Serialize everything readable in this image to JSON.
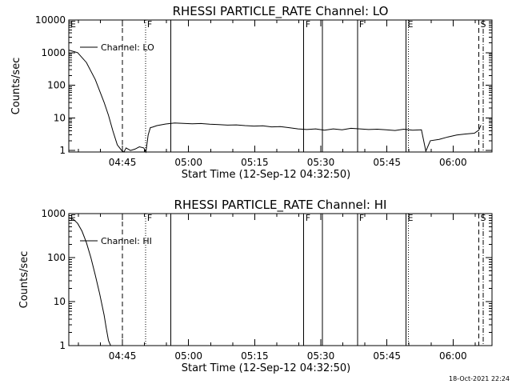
{
  "footer": {
    "timestamp": "18-Oct-2021 22:24"
  },
  "chart_data": [
    {
      "type": "line",
      "title": "RHESSI PARTICLE_RATE Channel: LO",
      "xlabel": "Start Time (12-Sep-12 04:32:50)",
      "ylabel": "Counts/sec",
      "yscale": "log",
      "xlim_minutes": [
        0,
        96
      ],
      "ylim": [
        0.9,
        10000
      ],
      "x_ticks_minutes": [
        12.17,
        27.17,
        42.17,
        57.17,
        72.17,
        87.17
      ],
      "x_tick_labels": [
        "04:45",
        "05:00",
        "05:15",
        "05:30",
        "05:45",
        "06:00"
      ],
      "y_ticks": [
        1,
        10,
        100,
        1000,
        10000
      ],
      "y_tick_labels": [
        "1",
        "10",
        "100",
        "1000",
        "10000"
      ],
      "legend": {
        "label": "Channel: LO",
        "placement": "top-left"
      },
      "series": [
        {
          "name": "Channel: LO",
          "x_minutes": [
            0,
            2,
            4,
            6,
            8,
            9,
            10,
            11,
            12,
            12.5,
            13,
            14,
            15,
            16,
            17,
            17.5,
            18,
            18.5,
            19,
            20,
            22,
            24,
            26,
            28,
            30,
            32,
            34,
            36,
            38,
            40,
            42,
            44,
            46,
            48,
            50,
            52,
            54,
            56,
            58,
            60,
            62,
            64,
            66,
            68,
            70,
            72,
            74,
            76,
            78,
            80,
            81,
            82,
            84,
            86,
            88,
            90,
            92,
            93,
            93.5
          ],
          "y": [
            1200,
            1000,
            500,
            150,
            30,
            12,
            4,
            1.5,
            1,
            0.9,
            1.2,
            1,
            1.1,
            1.3,
            1.2,
            0.9,
            3,
            5,
            5.2,
            5.8,
            6.5,
            7,
            6.8,
            6.6,
            6.7,
            6.4,
            6.2,
            6.0,
            6.1,
            5.8,
            5.6,
            5.7,
            5.3,
            5.4,
            5.0,
            4.6,
            4.4,
            4.6,
            4.2,
            4.6,
            4.3,
            4.8,
            4.6,
            4.4,
            4.5,
            4.3,
            4.1,
            4.5,
            4.2,
            4.3,
            0.95,
            2,
            2.2,
            2.6,
            3.0,
            3.2,
            3.4,
            4.2,
            6
          ]
        }
      ],
      "vlines": [
        {
          "x_minutes": 12.17,
          "style": "dashed",
          "flag": ""
        },
        {
          "x_minutes": 17.4,
          "style": "dotted",
          "flag": "F"
        },
        {
          "x_minutes": 23.1,
          "style": "solid",
          "flag": ""
        },
        {
          "x_minutes": 53.3,
          "style": "solid",
          "flag": "F"
        },
        {
          "x_minutes": 57.5,
          "style": "solid",
          "flag": ""
        },
        {
          "x_minutes": 65.5,
          "style": "solid",
          "flag": "F"
        },
        {
          "x_minutes": 76.5,
          "style": "solid",
          "flag": "E"
        },
        {
          "x_minutes": 77.0,
          "style": "dotted",
          "flag": ""
        },
        {
          "x_minutes": 93.0,
          "style": "dashed",
          "flag": "S"
        },
        {
          "x_minutes": 94.0,
          "style": "dashdot",
          "flag": ""
        }
      ],
      "corner_flag": "E"
    },
    {
      "type": "line",
      "title": "RHESSI PARTICLE_RATE Channel: HI",
      "xlabel": "Start Time (12-Sep-12 04:32:50)",
      "ylabel": "Counts/sec",
      "yscale": "log",
      "xlim_minutes": [
        0,
        96
      ],
      "ylim": [
        1,
        1000
      ],
      "x_ticks_minutes": [
        12.17,
        27.17,
        42.17,
        57.17,
        72.17,
        87.17
      ],
      "x_tick_labels": [
        "04:45",
        "05:00",
        "05:15",
        "05:30",
        "05:45",
        "06:00"
      ],
      "y_ticks": [
        1,
        10,
        100,
        1000
      ],
      "y_tick_labels": [
        "1",
        "10",
        "100",
        "1000"
      ],
      "legend": {
        "label": "Channel: HI",
        "placement": "top-left"
      },
      "series": [
        {
          "name": "Channel: HI",
          "x_minutes": [
            0,
            1,
            2,
            3,
            4,
            5,
            6,
            7,
            8,
            8.5,
            9,
            9.5
          ],
          "y": [
            800,
            750,
            600,
            400,
            220,
            100,
            40,
            15,
            5,
            2.5,
            1.3,
            1
          ]
        }
      ],
      "vlines": [
        {
          "x_minutes": 12.17,
          "style": "dashed",
          "flag": ""
        },
        {
          "x_minutes": 17.4,
          "style": "dotted",
          "flag": "F"
        },
        {
          "x_minutes": 23.1,
          "style": "solid",
          "flag": ""
        },
        {
          "x_minutes": 53.3,
          "style": "solid",
          "flag": "F"
        },
        {
          "x_minutes": 57.5,
          "style": "solid",
          "flag": ""
        },
        {
          "x_minutes": 65.5,
          "style": "solid",
          "flag": "F"
        },
        {
          "x_minutes": 76.5,
          "style": "solid",
          "flag": "E"
        },
        {
          "x_minutes": 77.0,
          "style": "dotted",
          "flag": ""
        },
        {
          "x_minutes": 93.0,
          "style": "dashed",
          "flag": "S"
        },
        {
          "x_minutes": 94.0,
          "style": "dashdot",
          "flag": ""
        }
      ],
      "corner_flag": "E"
    }
  ]
}
